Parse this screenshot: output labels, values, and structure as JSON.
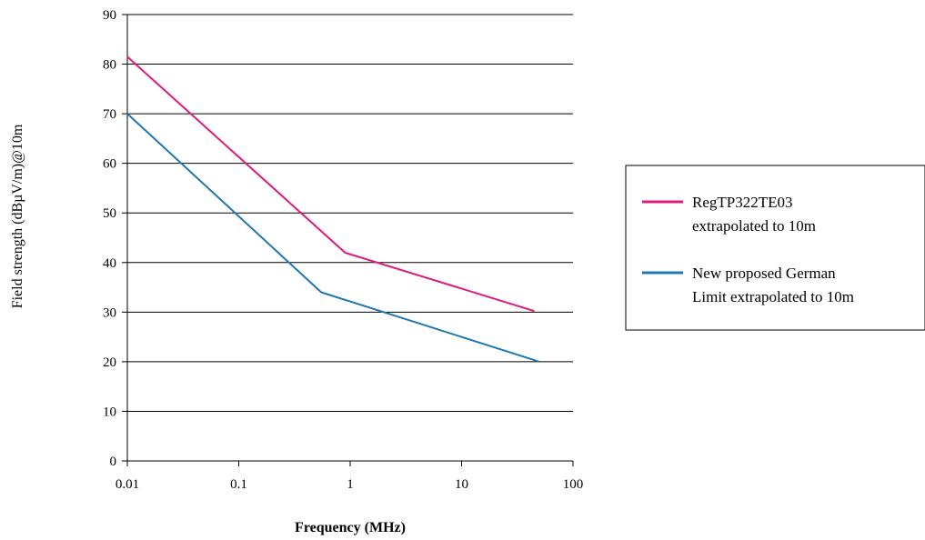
{
  "chart_data": {
    "type": "line",
    "xlabel": "Frequency (MHz)",
    "ylabel": "Field strength (dBµV/m)@10m",
    "x_scale": "log",
    "xlim": [
      0.01,
      100
    ],
    "ylim": [
      0,
      90
    ],
    "x_ticks": [
      0.01,
      0.1,
      1,
      10,
      100
    ],
    "x_tick_labels": [
      "0.01",
      "0.1",
      "1",
      "10",
      "100"
    ],
    "y_ticks": [
      0,
      10,
      20,
      30,
      40,
      50,
      60,
      70,
      80,
      90
    ],
    "y_tick_labels": [
      "0",
      "10",
      "20",
      "30",
      "40",
      "50",
      "60",
      "70",
      "80",
      "90"
    ],
    "grid": "horizontal",
    "legend_position": "right",
    "series": [
      {
        "name_lines": [
          "RegTP322TE03",
          "extrapolated to 10m"
        ],
        "color": "#e0197d",
        "points": [
          [
            0.01,
            81.5
          ],
          [
            0.9,
            42
          ],
          [
            45,
            30.2
          ]
        ]
      },
      {
        "name_lines": [
          "New proposed German",
          "Limit extrapolated to 10m"
        ],
        "color": "#1f77b4",
        "points": [
          [
            0.01,
            70
          ],
          [
            0.55,
            34
          ],
          [
            50,
            20
          ]
        ]
      }
    ]
  }
}
